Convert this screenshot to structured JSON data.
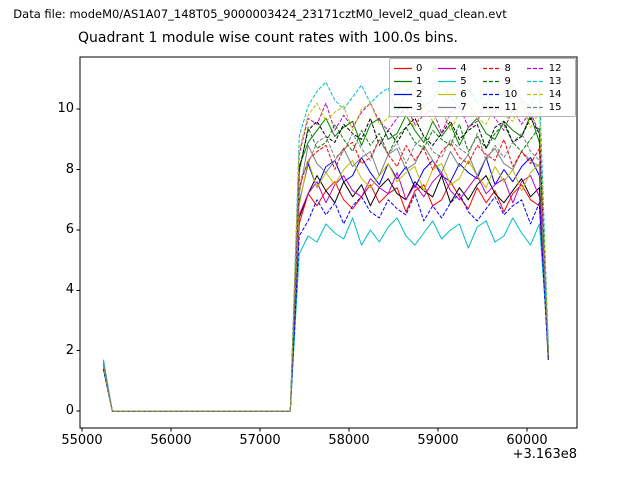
{
  "header": {
    "datafile": "Data file: modeM0/AS1A07_148T05_9000003424_23171cztM0_level2_quad_clean.evt"
  },
  "colors": {
    "axes": "#000000",
    "background": "#ffffff",
    "legend_border": "#b4b4b4"
  },
  "chart_data": {
    "type": "line",
    "title": "Quadrant 1 module wise count rates with 100.0s bins.",
    "xlabel": "",
    "ylabel": "",
    "x_offset_text": "+3.163e8",
    "x_ticks": [
      55000,
      56000,
      57000,
      58000,
      59000,
      60000
    ],
    "y_ticks": [
      0,
      2,
      4,
      6,
      8,
      10
    ],
    "xlim": [
      54977,
      60562
    ],
    "ylim": [
      -0.56,
      11.73
    ],
    "grid": false,
    "legend": {
      "position": "upper right",
      "ncols": 4,
      "order": "column-major"
    },
    "x_start": 55240,
    "x_step": 100,
    "n_points": 51,
    "series": [
      {
        "label": "0",
        "color": "#ff0000",
        "style": "solid",
        "values": [
          1.5,
          0,
          0,
          0,
          0,
          0,
          0,
          0,
          0,
          0,
          0,
          0,
          0,
          0,
          0,
          0,
          0,
          0,
          0,
          0,
          0,
          0,
          6.2,
          7.2,
          6.8,
          7.3,
          7.6,
          7.0,
          6.7,
          7.1,
          7.5,
          6.9,
          7.2,
          7.4,
          6.6,
          7.3,
          7.5,
          6.8,
          7.0,
          7.6,
          7.1,
          6.7,
          7.4,
          6.9,
          7.3,
          6.6,
          7.2,
          7.5,
          7.0,
          6.8,
          1.9
        ]
      },
      {
        "label": "1",
        "color": "#008000",
        "style": "solid",
        "values": [
          1.6,
          0,
          0,
          0,
          0,
          0,
          0,
          0,
          0,
          0,
          0,
          0,
          0,
          0,
          0,
          0,
          0,
          0,
          0,
          0,
          0,
          0,
          8.1,
          8.9,
          9.3,
          9.7,
          9.1,
          9.4,
          9.6,
          8.8,
          9.5,
          9.7,
          9.0,
          9.2,
          9.8,
          9.3,
          8.9,
          9.6,
          9.1,
          9.5,
          8.8,
          9.4,
          9.7,
          9.2,
          9.0,
          9.6,
          9.3,
          9.1,
          9.8,
          8.9,
          2.0
        ]
      },
      {
        "label": "2",
        "color": "#0000ff",
        "style": "solid",
        "values": [
          1.5,
          0,
          0,
          0,
          0,
          0,
          0,
          0,
          0,
          0,
          0,
          0,
          0,
          0,
          0,
          0,
          0,
          0,
          0,
          0,
          0,
          0,
          6.9,
          8.2,
          7.4,
          8.1,
          8.3,
          7.6,
          7.8,
          8.4,
          7.9,
          7.5,
          8.2,
          7.7,
          8.1,
          7.4,
          8.0,
          8.3,
          7.8,
          7.6,
          8.2,
          7.9,
          7.7,
          8.4,
          7.5,
          8.0,
          7.6,
          8.1,
          8.4,
          7.8,
          1.8
        ]
      },
      {
        "label": "3",
        "color": "#000000",
        "style": "solid",
        "values": [
          1.4,
          0,
          0,
          0,
          0,
          0,
          0,
          0,
          0,
          0,
          0,
          0,
          0,
          0,
          0,
          0,
          0,
          0,
          0,
          0,
          0,
          0,
          6.4,
          7.2,
          7.8,
          7.3,
          6.9,
          7.6,
          7.1,
          7.5,
          6.8,
          7.4,
          7.7,
          7.2,
          7.0,
          7.6,
          7.3,
          7.1,
          7.8,
          6.9,
          7.4,
          7.0,
          7.5,
          7.8,
          7.2,
          6.9,
          7.3,
          7.7,
          7.1,
          7.4,
          1.7
        ]
      },
      {
        "label": "4",
        "color": "#bf00bf",
        "style": "solid",
        "values": [
          1.6,
          0,
          0,
          0,
          0,
          0,
          0,
          0,
          0,
          0,
          0,
          0,
          0,
          0,
          0,
          0,
          0,
          0,
          0,
          0,
          0,
          0,
          6.5,
          7.2,
          7.6,
          6.9,
          7.5,
          7.8,
          7.3,
          7.1,
          7.7,
          7.4,
          7.2,
          7.9,
          7.0,
          7.5,
          7.1,
          7.6,
          7.9,
          7.3,
          7.0,
          7.4,
          7.8,
          7.2,
          7.5,
          7.7,
          6.9,
          7.6,
          7.8,
          7.1,
          1.9
        ]
      },
      {
        "label": "5",
        "color": "#00bfbf",
        "style": "solid",
        "values": [
          1.7,
          0,
          0,
          0,
          0,
          0,
          0,
          0,
          0,
          0,
          0,
          0,
          0,
          0,
          0,
          0,
          0,
          0,
          0,
          0,
          0,
          0,
          5.2,
          5.8,
          5.6,
          6.2,
          5.9,
          5.7,
          6.4,
          5.5,
          6.0,
          5.6,
          6.1,
          6.4,
          5.8,
          5.5,
          5.9,
          6.3,
          5.7,
          6.0,
          6.2,
          5.4,
          6.1,
          6.3,
          5.6,
          5.8,
          6.4,
          5.9,
          5.5,
          6.2,
          2.1
        ]
      },
      {
        "label": "6",
        "color": "#bfbf00",
        "style": "solid",
        "values": [
          1.5,
          0,
          0,
          0,
          0,
          0,
          0,
          0,
          0,
          0,
          0,
          0,
          0,
          0,
          0,
          0,
          0,
          0,
          0,
          0,
          0,
          0,
          6.8,
          8.3,
          7.4,
          7.9,
          7.5,
          8.0,
          8.3,
          7.7,
          7.4,
          7.8,
          8.2,
          7.6,
          7.9,
          8.1,
          7.3,
          8.0,
          8.2,
          7.5,
          7.7,
          8.3,
          7.8,
          7.4,
          8.1,
          7.6,
          8.0,
          7.3,
          7.9,
          8.2,
          1.8
        ]
      },
      {
        "label": "7",
        "color": "#7f7f7f",
        "style": "solid",
        "values": [
          1.6,
          0,
          0,
          0,
          0,
          0,
          0,
          0,
          0,
          0,
          0,
          0,
          0,
          0,
          0,
          0,
          0,
          0,
          0,
          0,
          0,
          0,
          7.2,
          8.8,
          8.2,
          7.9,
          8.3,
          8.7,
          8.1,
          8.4,
          8.6,
          7.8,
          8.5,
          8.7,
          8.0,
          8.2,
          8.8,
          8.3,
          7.9,
          8.6,
          8.1,
          8.5,
          7.8,
          8.4,
          8.7,
          8.2,
          8.0,
          8.6,
          8.3,
          8.1,
          1.9
        ]
      },
      {
        "label": "8",
        "color": "#ff0000",
        "style": "dashed",
        "values": [
          1.5,
          0,
          0,
          0,
          0,
          0,
          0,
          0,
          0,
          0,
          0,
          0,
          0,
          0,
          0,
          0,
          0,
          0,
          0,
          0,
          0,
          0,
          7.4,
          8.3,
          8.6,
          8.8,
          8.0,
          8.7,
          8.9,
          8.2,
          8.4,
          9.0,
          8.5,
          8.1,
          8.8,
          8.3,
          8.7,
          8.0,
          8.6,
          8.9,
          8.4,
          8.2,
          8.8,
          8.5,
          8.3,
          9.0,
          8.1,
          8.6,
          8.2,
          8.7,
          1.8
        ]
      },
      {
        "label": "9",
        "color": "#008000",
        "style": "dashed",
        "values": [
          1.6,
          0,
          0,
          0,
          0,
          0,
          0,
          0,
          0,
          0,
          0,
          0,
          0,
          0,
          0,
          0,
          0,
          0,
          0,
          0,
          0,
          0,
          7.9,
          9.4,
          8.7,
          8.9,
          9.5,
          9.0,
          8.6,
          9.3,
          8.8,
          9.2,
          8.5,
          9.1,
          9.4,
          8.9,
          8.7,
          9.3,
          9.0,
          8.8,
          9.5,
          8.6,
          9.1,
          8.7,
          9.2,
          9.5,
          8.9,
          8.6,
          9.0,
          9.4,
          2.0
        ]
      },
      {
        "label": "10",
        "color": "#0000ff",
        "style": "dashed",
        "values": [
          1.4,
          0,
          0,
          0,
          0,
          0,
          0,
          0,
          0,
          0,
          0,
          0,
          0,
          0,
          0,
          0,
          0,
          0,
          0,
          0,
          0,
          0,
          5.8,
          6.3,
          7.0,
          6.5,
          6.9,
          6.2,
          6.8,
          7.1,
          6.6,
          6.4,
          7.0,
          6.7,
          6.5,
          7.2,
          6.3,
          6.8,
          6.4,
          6.9,
          7.2,
          6.6,
          6.3,
          6.7,
          7.1,
          6.5,
          6.8,
          7.0,
          6.2,
          6.9,
          1.7
        ]
      },
      {
        "label": "11",
        "color": "#000000",
        "style": "dashed",
        "values": [
          1.5,
          0,
          0,
          0,
          0,
          0,
          0,
          0,
          0,
          0,
          0,
          0,
          0,
          0,
          0,
          0,
          0,
          0,
          0,
          0,
          0,
          0,
          8.0,
          9.3,
          9.6,
          9.1,
          8.9,
          9.5,
          9.2,
          9.0,
          9.7,
          8.8,
          9.3,
          8.9,
          9.4,
          9.7,
          9.1,
          8.8,
          9.2,
          9.6,
          9.0,
          9.3,
          9.5,
          8.7,
          9.4,
          9.6,
          8.9,
          9.1,
          9.7,
          9.2,
          1.9
        ]
      },
      {
        "label": "12",
        "color": "#bf00bf",
        "style": "dashed",
        "values": [
          1.6,
          0,
          0,
          0,
          0,
          0,
          0,
          0,
          0,
          0,
          0,
          0,
          0,
          0,
          0,
          0,
          0,
          0,
          0,
          0,
          0,
          0,
          8.5,
          9.7,
          9.5,
          10.2,
          9.3,
          9.8,
          9.4,
          9.9,
          10.2,
          9.6,
          9.3,
          9.7,
          10.1,
          9.5,
          9.8,
          10.0,
          9.2,
          9.9,
          10.1,
          9.4,
          9.6,
          10.2,
          9.7,
          9.3,
          10.0,
          9.5,
          9.9,
          9.2,
          2.1
        ]
      },
      {
        "label": "13",
        "color": "#00bfbf",
        "style": "dashed",
        "values": [
          1.7,
          0,
          0,
          0,
          0,
          0,
          0,
          0,
          0,
          0,
          0,
          0,
          0,
          0,
          0,
          0,
          0,
          0,
          0,
          0,
          0,
          0,
          9.1,
          10.1,
          10.6,
          10.9,
          10.3,
          10.0,
          10.4,
          10.8,
          10.2,
          10.5,
          10.7,
          9.9,
          10.6,
          10.8,
          10.1,
          10.3,
          10.9,
          10.4,
          10.0,
          10.7,
          10.2,
          10.6,
          9.9,
          10.5,
          10.8,
          10.3,
          10.1,
          10.7,
          2.2
        ]
      },
      {
        "label": "14",
        "color": "#bfbf00",
        "style": "dashed",
        "values": [
          1.5,
          0,
          0,
          0,
          0,
          0,
          0,
          0,
          0,
          0,
          0,
          0,
          0,
          0,
          0,
          0,
          0,
          0,
          0,
          0,
          0,
          0,
          8.6,
          9.8,
          10.2,
          9.6,
          9.9,
          10.1,
          9.3,
          10.0,
          10.2,
          9.5,
          9.7,
          10.3,
          9.8,
          9.4,
          10.1,
          9.6,
          10.0,
          9.3,
          9.9,
          10.2,
          9.7,
          9.5,
          10.1,
          9.8,
          9.6,
          10.3,
          9.4,
          9.9,
          2.0
        ]
      },
      {
        "label": "15",
        "color": "#7f7f7f",
        "style": "dashed",
        "values": [
          1.6,
          0,
          0,
          0,
          0,
          0,
          0,
          0,
          0,
          0,
          0,
          0,
          0,
          0,
          0,
          0,
          0,
          0,
          0,
          0,
          0,
          0,
          7.6,
          8.2,
          8.9,
          9.1,
          8.4,
          8.6,
          9.2,
          8.7,
          8.3,
          9.0,
          8.5,
          8.9,
          8.2,
          8.8,
          9.1,
          8.6,
          8.4,
          9.0,
          8.7,
          8.5,
          9.2,
          8.3,
          8.8,
          8.4,
          8.9,
          9.2,
          8.6,
          8.3,
          1.8
        ]
      }
    ]
  }
}
